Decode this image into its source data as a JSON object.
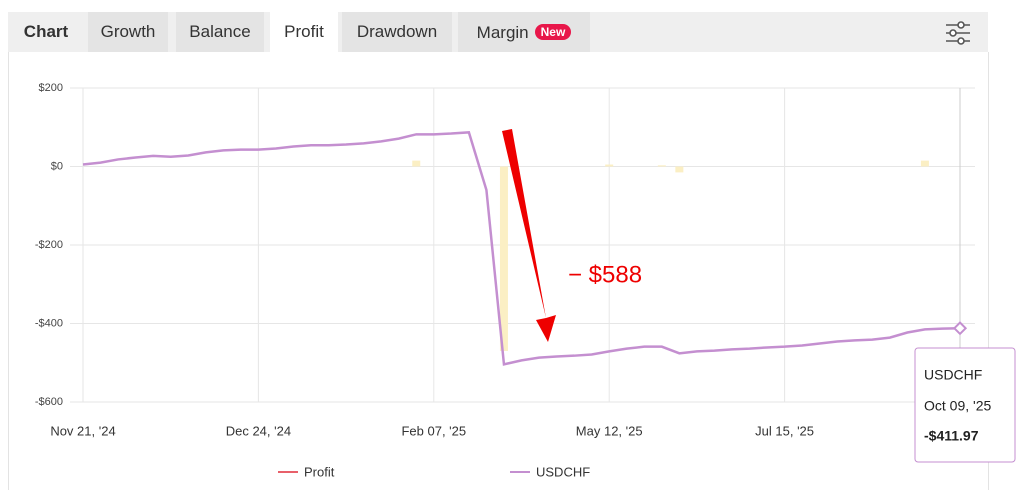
{
  "tabs": [
    {
      "label": "Chart"
    },
    {
      "label": "Growth"
    },
    {
      "label": "Balance"
    },
    {
      "label": "Profit",
      "active": true
    },
    {
      "label": "Drawdown"
    },
    {
      "label": "Margin",
      "badge": "New"
    }
  ],
  "chart_data": {
    "type": "line",
    "categories": [
      "Nov 21, '24",
      null,
      null,
      null,
      null,
      null,
      null,
      null,
      null,
      null,
      "Dec 24, '24",
      null,
      null,
      null,
      null,
      null,
      null,
      null,
      null,
      null,
      "Feb 07, '25",
      null,
      null,
      null,
      null,
      null,
      null,
      null,
      null,
      null,
      "May 12, '25",
      null,
      null,
      null,
      null,
      null,
      null,
      null,
      null,
      null,
      "Jul 15, '25",
      null,
      null,
      null,
      null,
      null,
      null,
      null,
      null,
      null,
      "Oct 09, '25"
    ],
    "series": [
      {
        "name": "Profit",
        "color": "#e8606a",
        "bar_color": "#fbefc4",
        "type": "bar",
        "values": [
          0,
          0,
          0,
          0,
          0,
          0,
          0,
          0,
          0,
          0,
          0,
          0,
          0,
          0,
          0,
          0,
          0,
          0,
          0,
          15,
          0,
          0,
          0,
          0,
          -470,
          0,
          0,
          0,
          0,
          0,
          5,
          0,
          0,
          3,
          -15,
          0,
          0,
          0,
          0,
          0,
          0,
          0,
          0,
          0,
          0,
          0,
          0,
          0,
          15,
          0,
          0
        ]
      },
      {
        "name": "USDCHF",
        "color": "#c48fd0",
        "type": "line",
        "values": [
          5,
          10,
          18,
          23,
          27,
          25,
          28,
          36,
          41,
          43,
          43,
          46,
          51,
          54,
          54,
          56,
          59,
          64,
          71,
          82,
          82,
          84,
          87,
          -60,
          -504,
          -494,
          -487,
          -484,
          -482,
          -479,
          -471,
          -464,
          -459,
          -459,
          -476,
          -471,
          -469,
          -466,
          -464,
          -461,
          -459,
          -456,
          -451,
          -446,
          -443,
          -441,
          -436,
          -423,
          -415,
          -413,
          -411.97
        ]
      }
    ],
    "ylim": [
      -600,
      200
    ],
    "yticks": [
      {
        "value": -600,
        "label": "-$600"
      },
      {
        "value": -400,
        "label": "-$400"
      },
      {
        "value": -200,
        "label": "-$200"
      },
      {
        "value": 0,
        "label": "$0"
      },
      {
        "value": 200,
        "label": "$200"
      }
    ],
    "grid": true,
    "annotation": "− $588",
    "tooltip": {
      "series": "USDCHF",
      "date": "Oct 09, '25",
      "value_label": "-$411.97"
    }
  }
}
